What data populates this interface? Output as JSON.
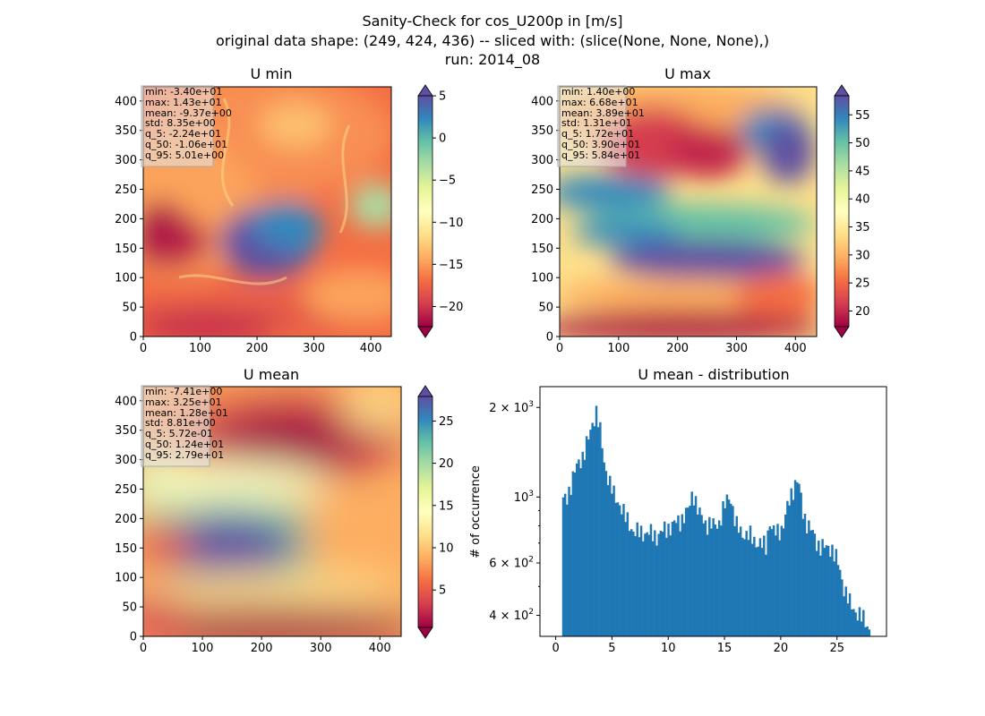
{
  "figure": {
    "suptitle_lines": [
      "Sanity-Check for cos_U200p in [m/s]",
      "original data shape: (249, 424, 436) -- sliced with: (slice(None, None, None),)",
      "run: 2014_08"
    ]
  },
  "colors": {
    "histogram_bar": "#1f77b4",
    "colormap": "Spectral",
    "colormap_stops": [
      "#9e0142",
      "#d53e4f",
      "#f46d43",
      "#fdae61",
      "#fee08b",
      "#ffffbf",
      "#e6f598",
      "#abdda4",
      "#66c2a5",
      "#3288bd",
      "#5e4fa2"
    ]
  },
  "chart_data": [
    {
      "type": "heatmap",
      "title": "U min",
      "xlim": [
        0,
        436
      ],
      "ylim": [
        0,
        424
      ],
      "xticks": [
        0,
        100,
        200,
        300,
        400
      ],
      "yticks": [
        0,
        50,
        100,
        150,
        200,
        250,
        300,
        350,
        400
      ],
      "colorbar": {
        "vmin": -22.4,
        "vmax": 5.01,
        "ticks": [
          -20,
          -15,
          -10,
          -5,
          0,
          5
        ],
        "extend": "both"
      },
      "stats_box": [
        "min: -3.40e+01",
        "max: 1.43e+01",
        "mean: -9.37e+00",
        "std: 8.35e+00",
        "q_5: -2.24e+01",
        "q_50: -1.06e+01",
        "q_95: 5.01e+00"
      ]
    },
    {
      "type": "heatmap",
      "title": "U max",
      "xlim": [
        0,
        436
      ],
      "ylim": [
        0,
        424
      ],
      "xticks": [
        0,
        100,
        200,
        300,
        400
      ],
      "yticks": [
        0,
        50,
        100,
        150,
        200,
        250,
        300,
        350,
        400
      ],
      "colorbar": {
        "vmin": 17.2,
        "vmax": 58.4,
        "ticks": [
          20,
          25,
          30,
          35,
          40,
          45,
          50,
          55
        ],
        "extend": "both"
      },
      "stats_box": [
        "min: 1.40e+00",
        "max: 6.68e+01",
        "mean: 3.89e+01",
        "std: 1.31e+01",
        "q_5: 1.72e+01",
        "q_50: 3.90e+01",
        "q_95: 5.84e+01"
      ]
    },
    {
      "type": "heatmap",
      "title": "U mean",
      "xlim": [
        0,
        436
      ],
      "ylim": [
        0,
        424
      ],
      "xticks": [
        0,
        100,
        200,
        300,
        400
      ],
      "yticks": [
        0,
        50,
        100,
        150,
        200,
        250,
        300,
        350,
        400
      ],
      "colorbar": {
        "vmin": 0.572,
        "vmax": 27.9,
        "ticks": [
          5,
          10,
          15,
          20,
          25
        ],
        "extend": "both"
      },
      "stats_box": [
        "min: -7.41e+00",
        "max: 3.25e+01",
        "mean: 1.28e+01",
        "std: 8.81e+00",
        "q_5: 5.72e-01",
        "q_50: 1.24e+01",
        "q_95: 2.79e+01"
      ]
    },
    {
      "type": "bar",
      "title": "U mean - distribution",
      "ylabel": "# of occurrence",
      "xlabel": "",
      "ylog": true,
      "xlim": [
        -1.4,
        29.4
      ],
      "ylim": [
        340,
        2350
      ],
      "xticks": [
        0,
        5,
        10,
        15,
        20,
        25
      ],
      "yticks": [
        {
          "value": 400,
          "mantissa": "4",
          "exp": "2"
        },
        {
          "value": 600,
          "mantissa": "6",
          "exp": "2"
        },
        {
          "value": 1000,
          "mantissa": "",
          "exp": "3"
        },
        {
          "value": 2000,
          "mantissa": "2",
          "exp": "3"
        }
      ],
      "bins": {
        "start": 0.57,
        "end": 27.95,
        "count": 158
      },
      "control_points": {
        "x": [
          0.57,
          1.0,
          1.5,
          2.0,
          2.5,
          3.0,
          3.3,
          3.6,
          3.9,
          4.3,
          4.7,
          5.2,
          5.7,
          6.2,
          7.0,
          8.0,
          9.0,
          10.0,
          11.0,
          11.8,
          12.2,
          12.7,
          13.3,
          14.0,
          14.5,
          15.0,
          15.5,
          16.0,
          16.5,
          17.2,
          18.0,
          18.7,
          19.0,
          19.3,
          19.7,
          20.2,
          20.7,
          21.2,
          21.5,
          22.0,
          22.5,
          23.2,
          24.0,
          24.5,
          25.0,
          25.6,
          26.2,
          26.8,
          27.5,
          27.95
        ],
        "y": [
          960,
          1000,
          1150,
          1300,
          1400,
          1600,
          1800,
          1950,
          1700,
          1300,
          1150,
          1000,
          950,
          850,
          760,
          760,
          740,
          790,
          830,
          900,
          1050,
          880,
          820,
          800,
          820,
          930,
          1020,
          800,
          760,
          740,
          700,
          680,
          840,
          760,
          760,
          800,
          950,
          1100,
          1150,
          870,
          800,
          700,
          670,
          680,
          610,
          500,
          430,
          410,
          380,
          360
        ]
      }
    }
  ]
}
